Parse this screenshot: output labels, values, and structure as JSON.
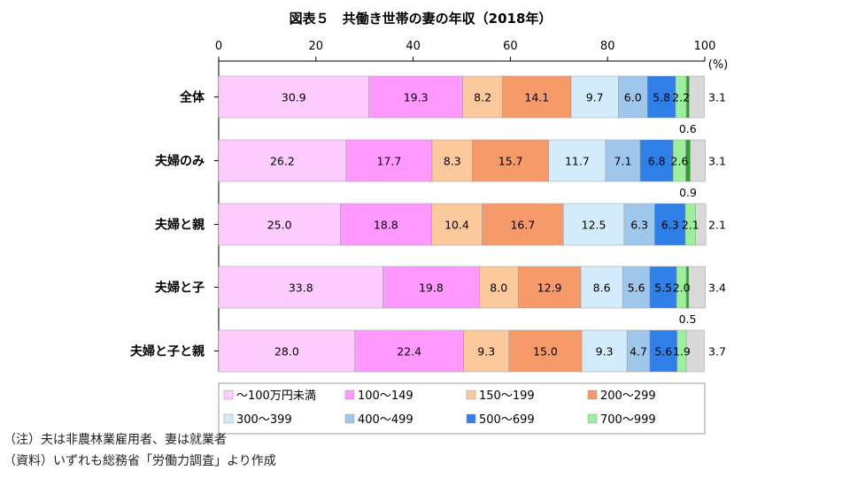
{
  "chart_data": {
    "type": "bar",
    "orientation": "horizontal",
    "stacked": true,
    "title": "図表５　共働き世帯の妻の年収（2018年）",
    "unit_label": "(%)",
    "xlim": [
      0,
      100
    ],
    "x_ticks": [
      "0",
      "20",
      "40",
      "60",
      "80",
      "100"
    ],
    "categories": [
      "全体",
      "夫婦のみ",
      "夫婦と親",
      "夫婦と子",
      "夫婦と子と親"
    ],
    "series": [
      {
        "name": "～100万円未満",
        "color": "#ffccff",
        "values": [
          30.9,
          26.2,
          25.0,
          33.8,
          28.0
        ],
        "labels": [
          "30.9",
          "26.2",
          "25.0",
          "33.8",
          "28.0"
        ]
      },
      {
        "name": "100～149",
        "color": "#ff99ff",
        "values": [
          19.3,
          17.7,
          18.8,
          19.8,
          22.4
        ],
        "labels": [
          "19.3",
          "17.7",
          "18.8",
          "19.8",
          "22.4"
        ]
      },
      {
        "name": "150～199",
        "color": "#fcc99c",
        "values": [
          8.2,
          8.3,
          10.4,
          8.0,
          9.3
        ],
        "labels": [
          "8.2",
          "8.3",
          "10.4",
          "8.0",
          "9.3"
        ]
      },
      {
        "name": "200～299",
        "color": "#f79a6a",
        "values": [
          14.1,
          15.7,
          16.7,
          12.9,
          15.0
        ],
        "labels": [
          "14.1",
          "15.7",
          "16.7",
          "12.9",
          "15.0"
        ]
      },
      {
        "name": "300～399",
        "color": "#d3ecfb",
        "values": [
          9.7,
          11.7,
          12.5,
          8.6,
          9.3
        ],
        "labels": [
          "9.7",
          "11.7",
          "12.5",
          "8.6",
          "9.3"
        ]
      },
      {
        "name": "400～499",
        "color": "#9fc7ec",
        "values": [
          6.0,
          7.1,
          6.3,
          5.6,
          4.7
        ],
        "labels": [
          "6.0",
          "7.1",
          "6.3",
          "5.6",
          "4.7"
        ]
      },
      {
        "name": "500～699",
        "color": "#2f7fe8",
        "values": [
          5.8,
          6.8,
          6.3,
          5.5,
          5.6
        ],
        "labels": [
          "5.8",
          "6.8",
          "6.3",
          "5.5",
          "5.6"
        ]
      },
      {
        "name": "700～999",
        "color": "#9cf09c",
        "values": [
          2.2,
          2.6,
          2.1,
          2.0,
          1.9
        ],
        "labels": [
          "2.2",
          "2.6",
          "2.1",
          "2.0",
          "1.9"
        ]
      },
      {
        "name": "",
        "color": "#2aa02a",
        "values": [
          0.6,
          0.9,
          0.0,
          0.5,
          0.0
        ],
        "labels": [
          "0.6",
          "0.9",
          "",
          "0.5",
          ""
        ]
      },
      {
        "name": "",
        "color": "#d9d9d9",
        "values": [
          3.1,
          3.1,
          2.1,
          3.4,
          3.7
        ],
        "labels": [
          "3.1",
          "3.1",
          "2.1",
          "3.4",
          "3.7"
        ]
      }
    ],
    "legend_position": "bottom",
    "grid": false
  },
  "notes": {
    "note1": "（注）夫は非農林業雇用者、妻は就業者",
    "note2": "（資料）いずれも総務省「労働力調査」より作成"
  }
}
